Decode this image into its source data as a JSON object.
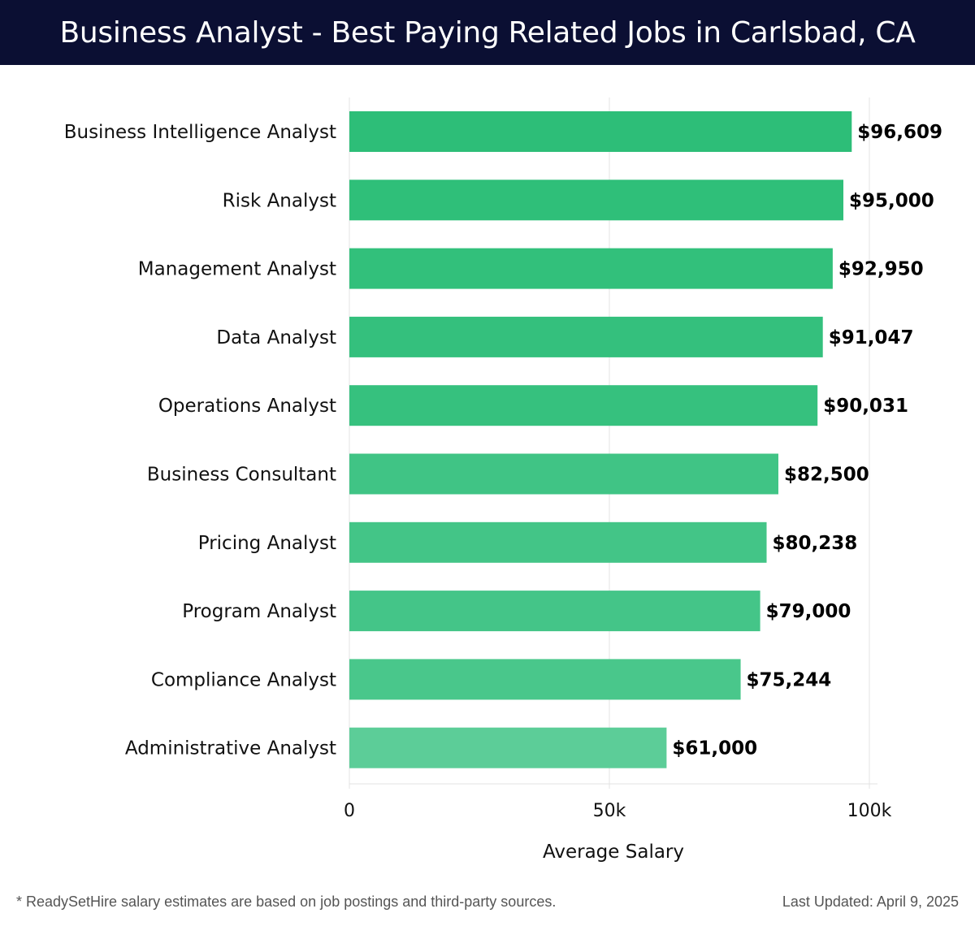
{
  "header": {
    "title": "Business Analyst - Best Paying Related Jobs in Carlsbad, CA"
  },
  "colors": {
    "header_bg": "#0b0f33",
    "bar_dark": "#2dbe78",
    "bar_light": "#5ccd98",
    "grid": "#e3e3e3"
  },
  "chart_data": {
    "type": "bar",
    "orientation": "horizontal",
    "categories": [
      "Business Intelligence Analyst",
      "Risk Analyst",
      "Management Analyst",
      "Data Analyst",
      "Operations Analyst",
      "Business Consultant",
      "Pricing Analyst",
      "Program Analyst",
      "Compliance Analyst",
      "Administrative Analyst"
    ],
    "values": [
      96609,
      95000,
      92950,
      91047,
      90031,
      82500,
      80238,
      79000,
      75244,
      61000
    ],
    "value_labels": [
      "$96,609",
      "$95,000",
      "$92,950",
      "$91,047",
      "$90,031",
      "$82,500",
      "$80,238",
      "$79,000",
      "$75,244",
      "$61,000"
    ],
    "xlabel": "Average Salary",
    "xlim": [
      0,
      100000
    ],
    "xticks": [
      0,
      50000,
      100000
    ],
    "xtick_labels": [
      "0",
      "50k",
      "100k"
    ],
    "grid": true
  },
  "footer": {
    "note": "* ReadySetHire salary estimates are based on job postings and third-party sources.",
    "updated": "Last Updated: April 9, 2025"
  }
}
